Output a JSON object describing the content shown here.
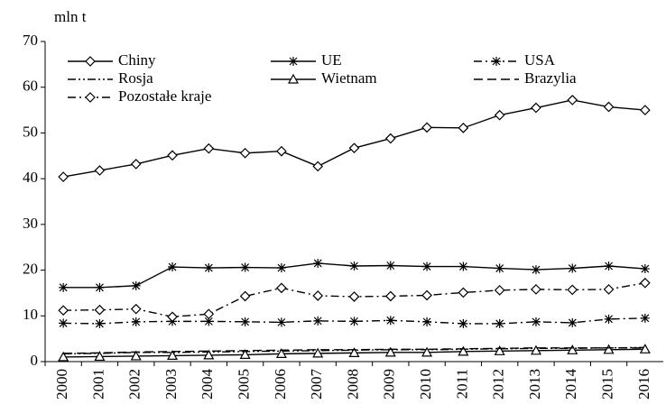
{
  "chart_data": {
    "type": "line",
    "y_label": "mln t",
    "categories": [
      "2000",
      "2001",
      "2002",
      "2003",
      "2004",
      "2005",
      "2006",
      "2007",
      "2008",
      "2009",
      "2010",
      "2011",
      "2012",
      "2013",
      "2014",
      "2015",
      "2016"
    ],
    "series": [
      {
        "name": "Chiny",
        "color": "#000000",
        "dash": "solid",
        "marker": "diamond",
        "values": [
          40.4,
          41.8,
          43.2,
          45.1,
          46.6,
          45.6,
          46.0,
          42.7,
          46.7,
          48.8,
          51.2,
          51.1,
          53.9,
          55.5,
          57.2,
          55.7,
          55.0
        ]
      },
      {
        "name": "UE",
        "color": "#000000",
        "dash": "solid",
        "marker": "star",
        "values": [
          16.2,
          16.2,
          16.6,
          20.7,
          20.5,
          20.6,
          20.5,
          21.5,
          20.9,
          21.0,
          20.8,
          20.8,
          20.4,
          20.1,
          20.4,
          20.9,
          20.3
        ]
      },
      {
        "name": "USA",
        "color": "#000000",
        "dash": "dashdot",
        "marker": "star",
        "values": [
          8.4,
          8.3,
          8.7,
          8.8,
          8.8,
          8.7,
          8.6,
          8.9,
          8.8,
          9.0,
          8.7,
          8.3,
          8.3,
          8.7,
          8.5,
          9.3,
          9.5
        ]
      },
      {
        "name": "Rosja",
        "color": "#000000",
        "dash": "dashdotdot",
        "marker": "none",
        "values": [
          1.7,
          1.8,
          2.0,
          2.0,
          2.1,
          2.2,
          2.3,
          2.4,
          2.5,
          2.6,
          2.6,
          2.7,
          2.8,
          2.9,
          2.9,
          3.0,
          3.1
        ]
      },
      {
        "name": "Wietnam",
        "color": "#000000",
        "dash": "solid",
        "marker": "triangle",
        "values": [
          1.0,
          1.1,
          1.2,
          1.3,
          1.4,
          1.5,
          1.7,
          1.8,
          1.9,
          2.0,
          2.0,
          2.2,
          2.3,
          2.4,
          2.5,
          2.6,
          2.7
        ]
      },
      {
        "name": "Brazylia",
        "color": "#000000",
        "dash": "dashed",
        "marker": "none",
        "values": [
          1.8,
          1.9,
          2.1,
          2.2,
          2.3,
          2.4,
          2.5,
          2.6,
          2.6,
          2.7,
          2.7,
          2.8,
          2.9,
          3.0,
          3.0,
          3.0,
          3.0
        ]
      },
      {
        "name": "Pozostałe kraje",
        "color": "#000000",
        "dash": "dashdot",
        "marker": "diamond",
        "values": [
          11.2,
          11.3,
          11.5,
          9.8,
          10.4,
          14.3,
          16.1,
          14.4,
          14.2,
          14.3,
          14.5,
          15.1,
          15.6,
          15.8,
          15.7,
          15.8,
          17.2
        ]
      }
    ],
    "ylim": [
      0,
      70
    ],
    "yticks": [
      0,
      10,
      20,
      30,
      40,
      50,
      60,
      70
    ],
    "grid": false,
    "legend": "top"
  }
}
